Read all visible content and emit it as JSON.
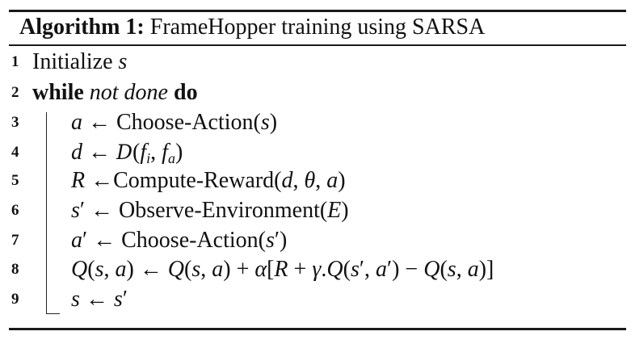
{
  "algorithm": {
    "caption_label": "Algorithm 1:",
    "caption_title": "FrameHopper training using SARSA",
    "lines": [
      {
        "number": "1",
        "text": "Initialize s"
      },
      {
        "number": "2",
        "keyword_while": "while",
        "condition": "not done",
        "keyword_do": "do"
      },
      {
        "number": "3",
        "text": "a ← Choose-Action(s)"
      },
      {
        "number": "4",
        "text": "d ← D(fi, fa)"
      },
      {
        "number": "5",
        "text": "R ←Compute-Reward(d, θ, a)"
      },
      {
        "number": "6",
        "text": "s′ ← Observe-Environment(E)"
      },
      {
        "number": "7",
        "text": "a′ ← Choose-Action(s′)"
      },
      {
        "number": "8",
        "text": "Q(s, a) ← Q(s, a) + α[R + γ.Q(s′, a′) − Q(s, a)]"
      },
      {
        "number": "9",
        "text": "s ← s′"
      }
    ]
  }
}
